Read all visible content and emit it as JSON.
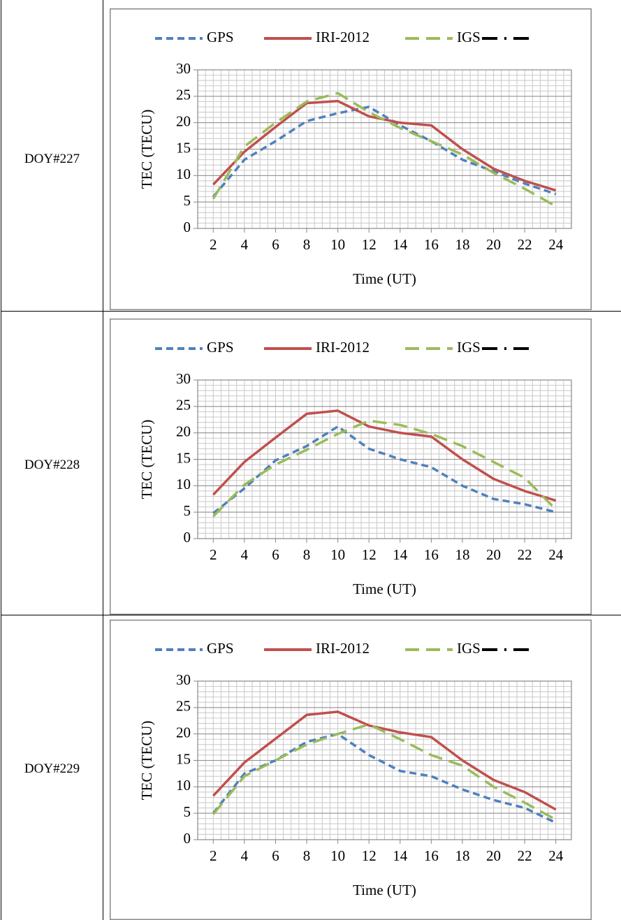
{
  "rows": [
    "DOY#227",
    "DOY#228",
    "DOY#229"
  ],
  "chart_data": [
    {
      "type": "line",
      "x_label": "Time (UT)",
      "y_label": "TEC (TECU)",
      "x": [
        2,
        4,
        6,
        8,
        10,
        12,
        14,
        16,
        18,
        20,
        22,
        24
      ],
      "xlim": [
        1,
        25
      ],
      "xticks": [
        2,
        4,
        6,
        8,
        10,
        12,
        14,
        16,
        18,
        20,
        22,
        24
      ],
      "ylim": [
        0,
        30
      ],
      "yticks": [
        0,
        5,
        10,
        15,
        20,
        25,
        30
      ],
      "grid": true,
      "minor_grid": true,
      "legend": "top",
      "series": [
        {
          "name": "GPS",
          "color": "#4f81bd",
          "style": "dashed",
          "values": [
            6,
            13,
            16.5,
            20.3,
            21.8,
            23,
            19.5,
            16.5,
            13,
            10.8,
            8.5,
            6.5
          ]
        },
        {
          "name": "IRI-2012",
          "color": "#c0504d",
          "style": "solid",
          "values": [
            8.3,
            14.5,
            19.2,
            23.7,
            24.1,
            21.2,
            20,
            19.5,
            15,
            11.3,
            9,
            7.2
          ]
        },
        {
          "name": "IGS",
          "color": "#9bbb59",
          "style": "long-dash",
          "values": [
            5.6,
            15.5,
            20,
            24,
            25.6,
            22,
            19,
            16.5,
            14,
            10.5,
            7.5,
            4.2
          ]
        },
        {
          "color": "#000000",
          "style": "dash-dot",
          "values": [
            null,
            null,
            null,
            null,
            null,
            null,
            null,
            null,
            null,
            null,
            null,
            null
          ]
        }
      ]
    },
    {
      "type": "line",
      "x_label": "Time (UT)",
      "y_label": "TEC (TECU)",
      "x": [
        2,
        4,
        6,
        8,
        10,
        12,
        14,
        16,
        18,
        20,
        22,
        24
      ],
      "xlim": [
        1,
        25
      ],
      "xticks": [
        2,
        4,
        6,
        8,
        10,
        12,
        14,
        16,
        18,
        20,
        22,
        24
      ],
      "ylim": [
        0,
        30
      ],
      "yticks": [
        0,
        5,
        10,
        15,
        20,
        25,
        30
      ],
      "grid": true,
      "minor_grid": true,
      "legend": "top",
      "series": [
        {
          "name": "GPS",
          "color": "#4f81bd",
          "style": "dashed",
          "values": [
            4.8,
            9.5,
            14.8,
            17.5,
            21.2,
            17,
            15,
            13.5,
            10,
            7.5,
            6.5,
            5
          ]
        },
        {
          "name": "IRI-2012",
          "color": "#c0504d",
          "style": "solid",
          "values": [
            8.3,
            14.5,
            19.1,
            23.6,
            24.2,
            21.2,
            20,
            19.3,
            15,
            11.3,
            9,
            7.2
          ]
        },
        {
          "name": "IGS",
          "color": "#9bbb59",
          "style": "long-dash",
          "values": [
            4.2,
            10.2,
            14,
            16.8,
            19.8,
            22.3,
            21.5,
            19.8,
            17.5,
            14.5,
            11.5,
            5.5
          ]
        },
        {
          "color": "#000000",
          "style": "dash-dot",
          "values": [
            null,
            null,
            null,
            null,
            null,
            null,
            null,
            null,
            null,
            null,
            null,
            null
          ]
        }
      ]
    },
    {
      "type": "line",
      "x_label": "Time (UT)",
      "y_label": "TEC (TECU)",
      "x": [
        2,
        4,
        6,
        8,
        10,
        12,
        14,
        16,
        18,
        20,
        22,
        24
      ],
      "xlim": [
        1,
        25
      ],
      "xticks": [
        2,
        4,
        6,
        8,
        10,
        12,
        14,
        16,
        18,
        20,
        22,
        24
      ],
      "ylim": [
        0,
        30
      ],
      "yticks": [
        0,
        5,
        10,
        15,
        20,
        25,
        30
      ],
      "grid": true,
      "minor_grid": true,
      "legend": "top",
      "series": [
        {
          "name": "GPS",
          "color": "#4f81bd",
          "style": "dashed",
          "values": [
            5,
            12.5,
            15,
            18.5,
            20,
            16,
            13,
            12,
            9.5,
            7.5,
            6,
            3.2
          ]
        },
        {
          "name": "IRI-2012",
          "color": "#c0504d",
          "style": "solid",
          "values": [
            8.3,
            14.6,
            19.1,
            23.6,
            24.2,
            21.6,
            20.3,
            19.4,
            15,
            11.3,
            9,
            5.7
          ]
        },
        {
          "name": "IGS",
          "color": "#9bbb59",
          "style": "long-dash",
          "values": [
            4.8,
            12,
            15,
            18,
            20,
            21.8,
            19,
            16,
            14,
            10,
            7,
            3.8
          ]
        },
        {
          "color": "#000000",
          "style": "dash-dot",
          "values": [
            null,
            null,
            null,
            null,
            null,
            null,
            null,
            null,
            null,
            null,
            null,
            null
          ]
        }
      ]
    }
  ]
}
